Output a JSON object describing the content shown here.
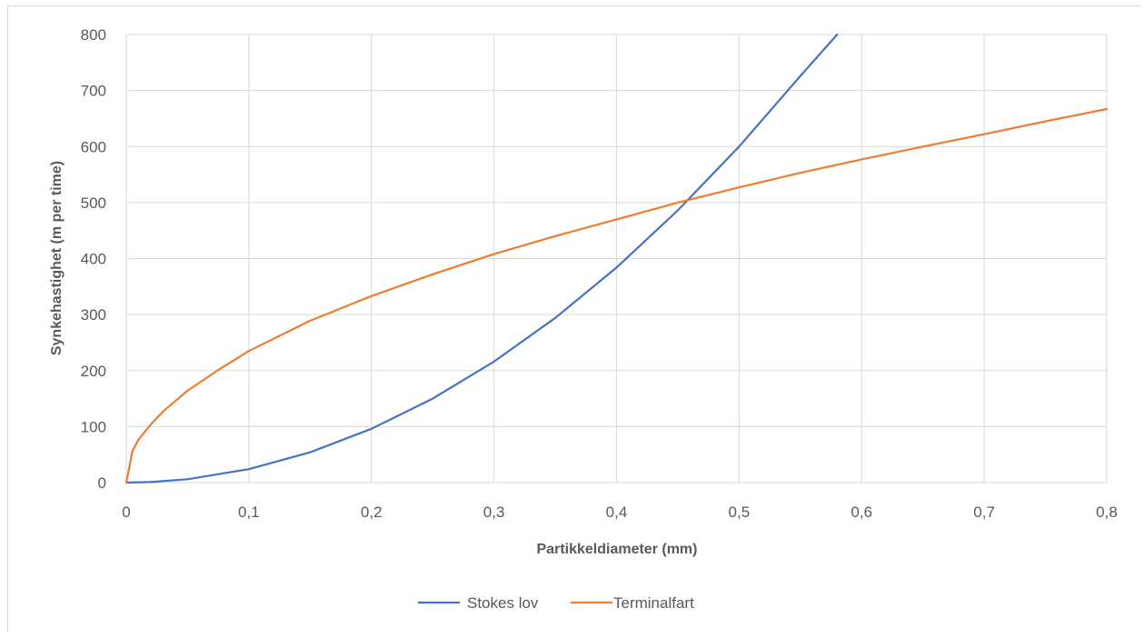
{
  "chart_data": {
    "type": "line",
    "title": "",
    "xlabel": "Partikkeldiameter (mm)",
    "ylabel": "Synkehastighet (m per time)",
    "xlim": [
      0,
      0.8
    ],
    "ylim": [
      0,
      800
    ],
    "x_ticks": [
      "0",
      "0,1",
      "0,2",
      "0,3",
      "0,4",
      "0,5",
      "0,6",
      "0,7",
      "0,8"
    ],
    "y_ticks": [
      "0",
      "100",
      "200",
      "300",
      "400",
      "500",
      "600",
      "700",
      "800"
    ],
    "grid": true,
    "legend_position": "bottom",
    "series": [
      {
        "name": "Stokes lov",
        "color": "#4472c4",
        "x": [
          0,
          0.02,
          0.05,
          0.1,
          0.15,
          0.2,
          0.25,
          0.3,
          0.35,
          0.4,
          0.45,
          0.5,
          0.55,
          0.58
        ],
        "y": [
          0,
          1,
          6,
          24,
          54,
          96,
          150,
          216,
          294,
          384,
          486,
          600,
          726,
          800
        ]
      },
      {
        "name": "Terminalfart",
        "color": "#ed7d31",
        "x": [
          0,
          0.005,
          0.01,
          0.02,
          0.03,
          0.05,
          0.075,
          0.1,
          0.15,
          0.2,
          0.25,
          0.3,
          0.35,
          0.4,
          0.45,
          0.5,
          0.55,
          0.6,
          0.65,
          0.7,
          0.75,
          0.8
        ],
        "y": [
          0,
          56,
          77,
          104,
          127,
          164,
          201,
          235,
          289,
          333,
          372,
          408,
          440,
          470,
          500,
          527,
          553,
          577,
          600,
          622,
          645,
          667
        ]
      }
    ]
  }
}
